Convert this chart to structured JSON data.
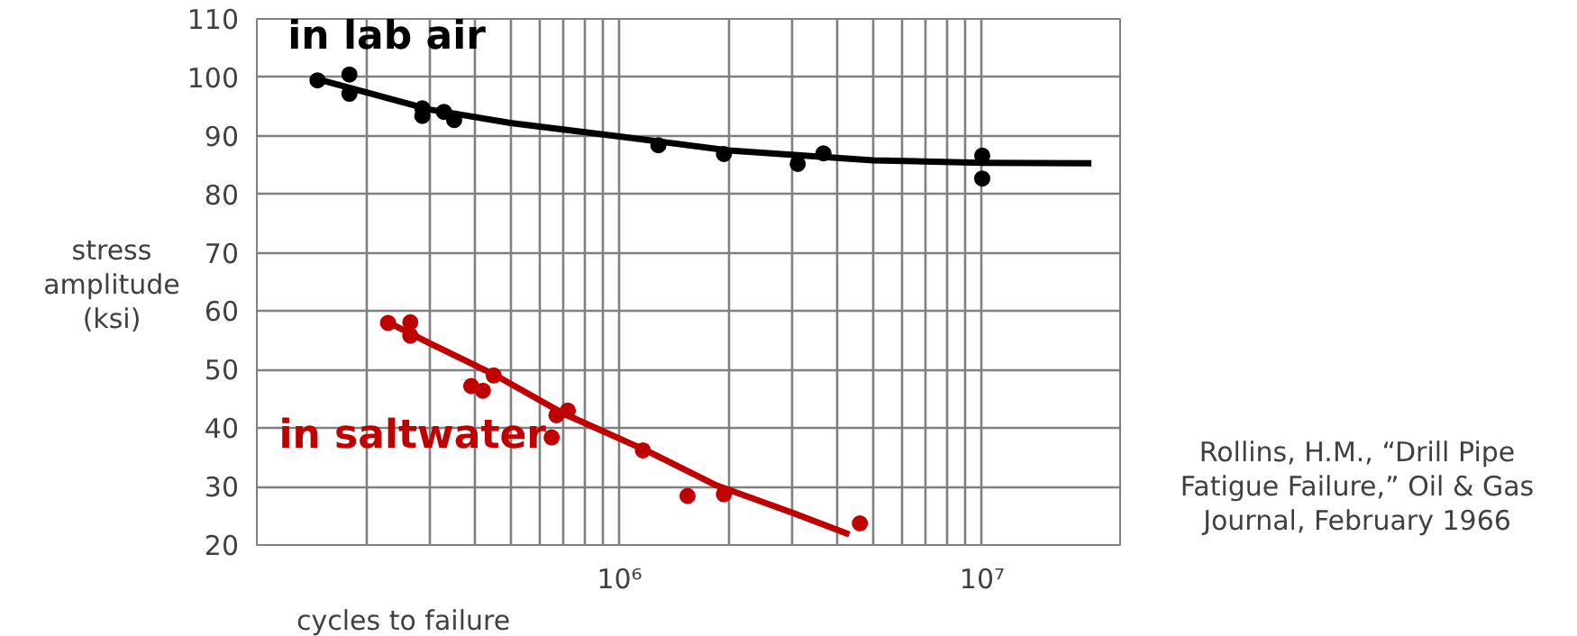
{
  "chart_data": {
    "type": "scatter",
    "xlabel": "cycles to failure",
    "ylabel": "stress\namplitude\n(ksi)",
    "log": "x",
    "grid": true,
    "marker": "circle",
    "xlim": [
      100000,
      24000000
    ],
    "ylim": [
      20,
      110
    ],
    "xticks": [
      {
        "value": 200000,
        "label": null
      },
      {
        "value": 300000,
        "label": null
      },
      {
        "value": 400000,
        "label": null
      },
      {
        "value": 500000,
        "label": null
      },
      {
        "value": 600000,
        "label": null
      },
      {
        "value": 700000,
        "label": null
      },
      {
        "value": 800000,
        "label": null
      },
      {
        "value": 900000,
        "label": null
      },
      {
        "value": 1000000,
        "label": "10⁶"
      },
      {
        "value": 2000000,
        "label": null
      },
      {
        "value": 3000000,
        "label": null
      },
      {
        "value": 4000000,
        "label": null
      },
      {
        "value": 5000000,
        "label": null
      },
      {
        "value": 6000000,
        "label": null
      },
      {
        "value": 7000000,
        "label": null
      },
      {
        "value": 8000000,
        "label": null
      },
      {
        "value": 9000000,
        "label": null
      },
      {
        "value": 10000000,
        "label": "10⁷"
      }
    ],
    "yticks": [
      20,
      30,
      40,
      50,
      60,
      70,
      80,
      90,
      100,
      110
    ],
    "series": [
      {
        "name": "in lab air",
        "color": "#000000",
        "x": [
          147000,
          180000,
          180000,
          286000,
          286000,
          328000,
          350000,
          1280000,
          1940000,
          3100000,
          3650000,
          10000000,
          10000000
        ],
        "values": [
          99.5,
          100.5,
          97.2,
          94.7,
          93.4,
          94.1,
          92.7,
          88.4,
          86.9,
          85.2,
          87.0,
          86.6,
          82.7
        ]
      },
      {
        "type": "line",
        "marker": "none",
        "color": "#000000",
        "x": [
          147000,
          300000,
          500000,
          1000000,
          2000000,
          5000000,
          10000000,
          20000000
        ],
        "values": [
          99.7,
          94.5,
          92.2,
          89.9,
          87.5,
          85.8,
          85.4,
          85.3
        ]
      },
      {
        "name": "in saltwater",
        "color": "#c00000",
        "x": [
          230000,
          265000,
          265000,
          390000,
          420000,
          450000,
          650000,
          670000,
          720000,
          1160000,
          1540000,
          1940000,
          4600000
        ],
        "values": [
          58.0,
          58.1,
          55.8,
          47.2,
          46.4,
          49.0,
          38.4,
          42.2,
          43.0,
          36.2,
          28.4,
          28.7,
          23.7
        ]
      },
      {
        "type": "line",
        "marker": "none",
        "color": "#c00000",
        "x": [
          235000,
          300000,
          450000,
          700000,
          1200000,
          1850000,
          3000000,
          4300000
        ],
        "values": [
          57.8,
          54.5,
          49.2,
          42.5,
          36.0,
          30.2,
          25.5,
          21.8
        ]
      }
    ],
    "annotations": [
      "Rollins, H.M., “Drill Pipe\nFatigue Failure,” Oil & Gas\nJournal, February 1966"
    ]
  }
}
